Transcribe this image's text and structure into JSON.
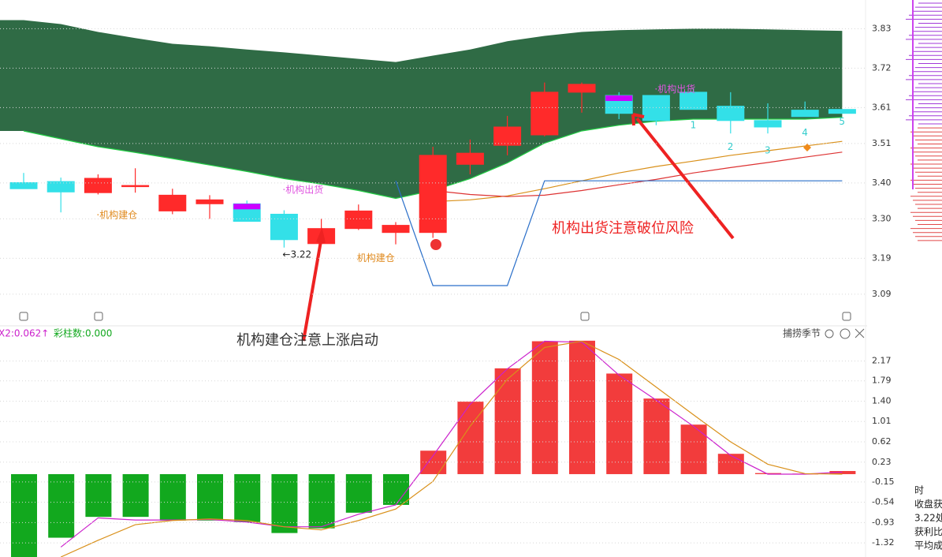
{
  "chart_data": [
    {
      "type": "candlestick",
      "candles": [
        {
          "open": 3.401,
          "high": 3.428,
          "low": 3.384,
          "close": 3.384
        },
        {
          "open": 3.404,
          "high": 3.415,
          "low": 3.318,
          "close": 3.375
        },
        {
          "open": 3.373,
          "high": 3.424,
          "low": 3.368,
          "close": 3.413
        },
        {
          "open": 3.393,
          "high": 3.441,
          "low": 3.373,
          "close": 3.393
        },
        {
          "open": 3.322,
          "high": 3.384,
          "low": 3.313,
          "close": 3.366
        },
        {
          "open": 3.342,
          "high": 3.366,
          "low": 3.3,
          "close": 3.353
        },
        {
          "open": 3.342,
          "high": 3.351,
          "low": 3.293,
          "close": 3.293
        },
        {
          "open": 3.313,
          "high": 3.324,
          "low": 3.22,
          "close": 3.242
        },
        {
          "open": 3.231,
          "high": 3.3,
          "low": 3.231,
          "close": 3.273
        },
        {
          "open": 3.273,
          "high": 3.34,
          "low": 3.269,
          "close": 3.322
        },
        {
          "open": 3.262,
          "high": 3.291,
          "low": 3.229,
          "close": 3.282
        },
        {
          "open": 3.262,
          "high": 3.501,
          "low": 3.247,
          "close": 3.477
        },
        {
          "open": 3.452,
          "high": 3.521,
          "low": 3.424,
          "close": 3.483
        },
        {
          "open": 3.505,
          "high": 3.587,
          "low": 3.477,
          "close": 3.556
        },
        {
          "open": 3.534,
          "high": 3.68,
          "low": 3.53,
          "close": 3.653
        },
        {
          "open": 3.653,
          "high": 3.68,
          "low": 3.596,
          "close": 3.675
        },
        {
          "open": 3.644,
          "high": 3.653,
          "low": 3.578,
          "close": 3.594
        },
        {
          "open": 3.644,
          "high": 3.644,
          "low": 3.561,
          "close": 3.574
        },
        {
          "open": 3.653,
          "high": 3.664,
          "low": 3.605,
          "close": 3.605
        },
        {
          "open": 3.614,
          "high": 3.653,
          "low": 3.538,
          "close": 3.574
        },
        {
          "open": 3.574,
          "high": 3.622,
          "low": 3.538,
          "close": 3.556
        },
        {
          "open": 3.603,
          "high": 3.627,
          "low": 3.585,
          "close": 3.585
        },
        {
          "open": 3.605,
          "high": 3.605,
          "low": 3.594,
          "close": 3.594
        }
      ],
      "up_color": "#ff2a2a",
      "down_color": "#33e0e8",
      "highlight_color": "#cc00ff",
      "highlighted": [
        6,
        16
      ],
      "band": {
        "color": "#2f6b45",
        "edge_color": "#22cc44",
        "upper": [
          3.854,
          3.843,
          3.821,
          3.804,
          3.788,
          3.781,
          3.772,
          3.764,
          3.755,
          3.746,
          3.737,
          3.755,
          3.772,
          3.795,
          3.81,
          3.821,
          3.826,
          3.828,
          3.83,
          3.83,
          3.828,
          3.826,
          3.824
        ],
        "lower": [
          3.545,
          3.523,
          3.501,
          3.485,
          3.468,
          3.45,
          3.432,
          3.412,
          3.397,
          3.379,
          3.357,
          3.379,
          3.412,
          3.456,
          3.511,
          3.545,
          3.561,
          3.572,
          3.578,
          3.578,
          3.578,
          3.578,
          3.583
        ]
      },
      "lines": [
        {
          "color": "#d9901a",
          "values": [
            null,
            null,
            null,
            null,
            null,
            null,
            null,
            null,
            null,
            null,
            null,
            3.348,
            3.353,
            3.364,
            3.384,
            3.406,
            3.428,
            3.446,
            3.461,
            3.477,
            3.49,
            3.503,
            3.516
          ]
        },
        {
          "color": "#dd3333",
          "values": [
            null,
            null,
            null,
            null,
            null,
            null,
            null,
            null,
            null,
            null,
            null,
            3.379,
            3.368,
            3.362,
            3.366,
            3.379,
            3.395,
            3.41,
            3.428,
            3.443,
            3.457,
            3.472,
            3.486
          ]
        },
        {
          "color": "#2a6fc9",
          "values": [
            null,
            null,
            null,
            null,
            null,
            null,
            null,
            null,
            null,
            null,
            3.406,
            3.114,
            3.114,
            3.114,
            3.406,
            3.406,
            3.406,
            3.406,
            3.406,
            3.406,
            3.406,
            3.406,
            3.406
          ]
        }
      ],
      "ylim": [
        3.048,
        3.91
      ],
      "yticks": [
        3.83,
        3.72,
        3.61,
        3.51,
        {
          "value": 3.4,
          "label": "3.40"
        },
        {
          "value": 3.3,
          "label": "3.30"
        },
        3.19,
        3.09
      ],
      "annotations": [
        {
          "text": "·机构建仓",
          "index": 2,
          "price": 3.31,
          "color": "#e08a1e"
        },
        {
          "text": "·机构出货",
          "index": 7,
          "price": 3.38,
          "color": "#e055e0"
        },
        {
          "text": "←3.22",
          "index": 7,
          "price": 3.2,
          "color": "#222222"
        },
        {
          "text": "机构建仓",
          "index": 9,
          "price": 3.19,
          "color": "#e08a1e"
        },
        {
          "text": "·机构出货",
          "index": 17,
          "price": 3.66,
          "color": "#e055e0"
        },
        {
          "text": "1",
          "index": 18,
          "price": 3.56,
          "color": "#33cccc"
        },
        {
          "text": "2",
          "index": 19,
          "price": 3.5,
          "color": "#33cccc"
        },
        {
          "text": "3",
          "index": 20,
          "price": 3.49,
          "color": "#33cccc"
        },
        {
          "text": "4",
          "index": 21,
          "price": 3.54,
          "color": "#33cccc"
        },
        {
          "text": "5",
          "index": 22,
          "price": 3.57,
          "color": "#33cccc"
        }
      ],
      "callouts": [
        "机构出货注意破位风险",
        "机构建仓注意上涨启动"
      ]
    },
    {
      "type": "bar",
      "values": [
        -1.7,
        -1.22,
        -0.82,
        -0.82,
        -0.89,
        -0.89,
        -0.92,
        -1.13,
        -1.04,
        -0.74,
        -0.59,
        0.45,
        1.39,
        2.03,
        2.55,
        2.56,
        1.93,
        1.45,
        0.95,
        0.39,
        0.02,
        0.01,
        0.06
      ],
      "pos_color": "#f23c3c",
      "neg_color": "#12a81e",
      "series": [
        {
          "color": "#cc22cc",
          "values": [
            null,
            -1.4,
            -0.84,
            -0.88,
            -0.88,
            -0.87,
            -0.92,
            -1.01,
            -1.01,
            -0.77,
            -0.59,
            0.35,
            1.34,
            2.02,
            2.55,
            2.53,
            1.9,
            1.42,
            0.92,
            0.36,
            0.0,
            0.0,
            0.04
          ]
        },
        {
          "color": "#d9901a",
          "values": [
            null,
            -1.59,
            -1.27,
            -0.97,
            -0.89,
            -0.86,
            -0.89,
            -1.01,
            -1.07,
            -0.89,
            -0.67,
            -0.14,
            0.92,
            1.82,
            2.43,
            2.55,
            2.2,
            1.67,
            1.14,
            0.62,
            0.19,
            0.01,
            0.0
          ]
        }
      ],
      "ylim": [
        -1.59,
        2.8
      ],
      "yticks": [
        2.17,
        1.79,
        {
          "value": 1.4,
          "label": "1.40"
        },
        1.01,
        0.62,
        0.23,
        -0.15,
        -0.54,
        -0.93,
        -1.32
      ],
      "indicator": "X2:0.062↑",
      "count_label": "彩柱数:0.000",
      "title": "捕捞季节",
      "side_text": [
        "时",
        "收盘获",
        "3.22处",
        "获利比",
        "平均成"
      ]
    }
  ]
}
